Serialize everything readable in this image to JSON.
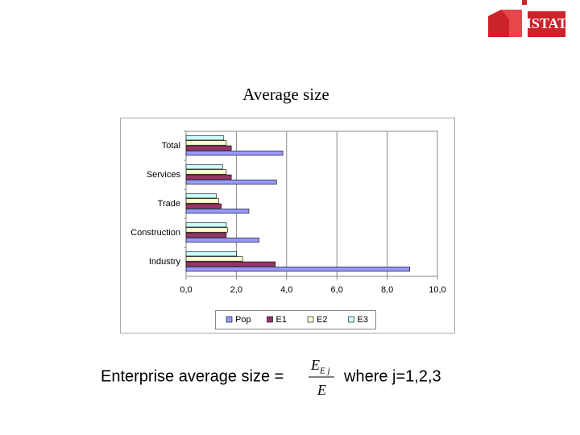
{
  "logo": "ISTAT",
  "chart_data": {
    "type": "bar",
    "orientation": "horizontal",
    "title": "Average size",
    "categories": [
      "Total",
      "Services",
      "Trade",
      "Construction",
      "Industry"
    ],
    "series": [
      {
        "name": "Pop",
        "color": "#9999ff",
        "values": [
          3.85,
          3.6,
          2.5,
          2.9,
          8.9
        ]
      },
      {
        "name": "E1",
        "color": "#993366",
        "values": [
          1.8,
          1.8,
          1.4,
          1.6,
          3.55
        ]
      },
      {
        "name": "E2",
        "color": "#ffffcc",
        "values": [
          1.6,
          1.6,
          1.3,
          1.65,
          2.25
        ]
      },
      {
        "name": "E3",
        "color": "#ccffff",
        "values": [
          1.5,
          1.45,
          1.2,
          1.6,
          2.0
        ]
      }
    ],
    "xlim": [
      0,
      10
    ],
    "xticks": [
      {
        "value": 0,
        "label": "0,0"
      },
      {
        "value": 2,
        "label": "2,0"
      },
      {
        "value": 4,
        "label": "4,0"
      },
      {
        "value": 6,
        "label": "6,0"
      },
      {
        "value": 8,
        "label": "8,0"
      },
      {
        "value": 10,
        "label": "10,0"
      }
    ],
    "grid": true,
    "legend": "bottom"
  },
  "formula": {
    "lhs": "Enterprise average size =",
    "numerator": "E",
    "numerator_sub": "E j",
    "denominator": "E",
    "rhs": "where j=1,2,3"
  }
}
